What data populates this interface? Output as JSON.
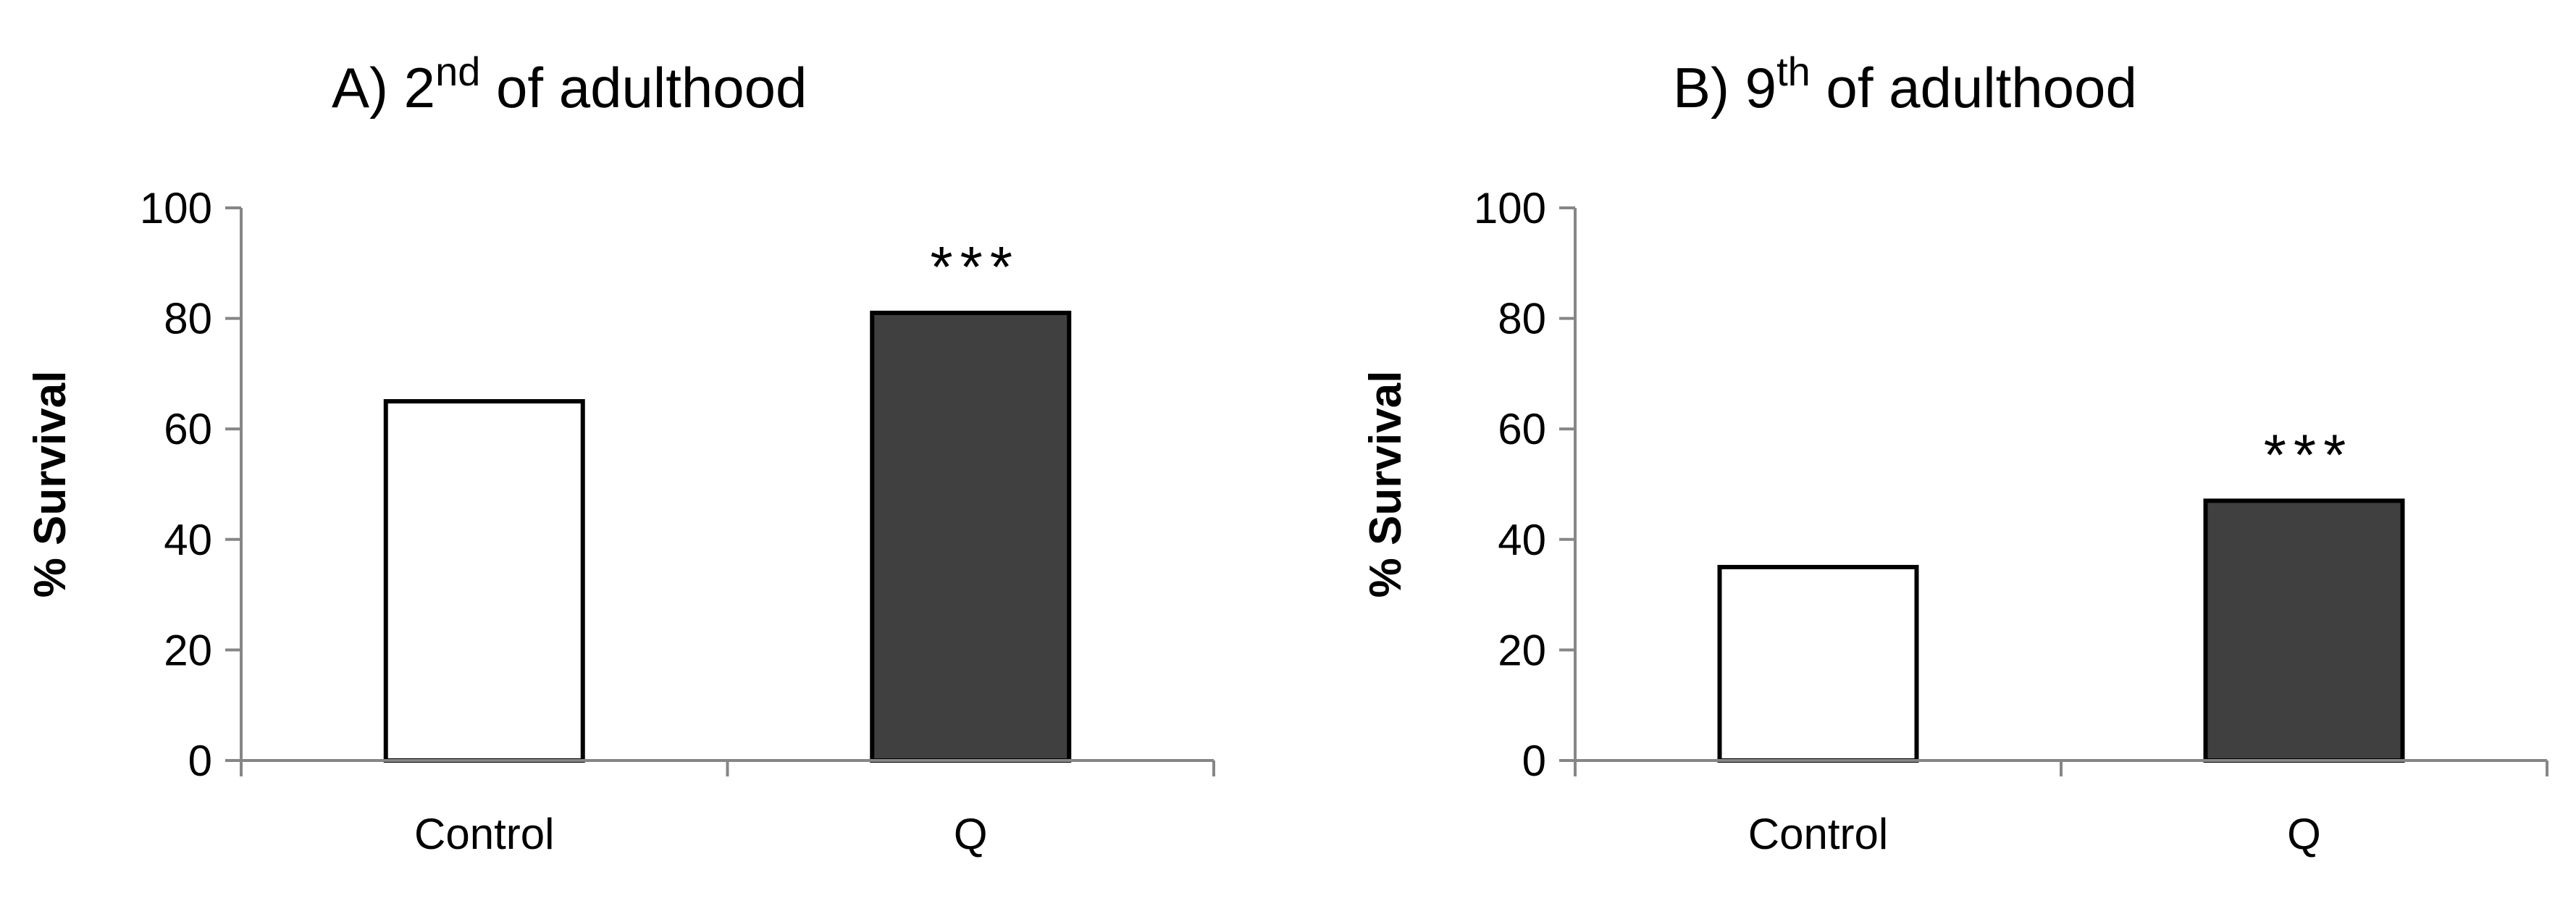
{
  "chart_data": [
    {
      "type": "bar",
      "title": {
        "prefix": "A) 2",
        "superscript": "nd",
        "suffix": " of adulthood"
      },
      "xlabel": "",
      "ylabel": "% Survival",
      "ylim": [
        0,
        100
      ],
      "yticks": [
        "0",
        "20",
        "40",
        "60",
        "80",
        "100"
      ],
      "categories": [
        "Control",
        "Q"
      ],
      "values": [
        65,
        81
      ],
      "annotations": [
        "",
        "***"
      ],
      "colors": [
        "#ffffff",
        "#404040"
      ]
    },
    {
      "type": "bar",
      "title": {
        "prefix": "B) 9",
        "superscript": "th",
        "suffix": " of adulthood"
      },
      "xlabel": "",
      "ylabel": "% Survival",
      "ylim": [
        0,
        100
      ],
      "yticks": [
        "0",
        "20",
        "40",
        "60",
        "80",
        "100"
      ],
      "categories": [
        "Control",
        "Q"
      ],
      "values": [
        35,
        47
      ],
      "annotations": [
        "",
        "***"
      ],
      "colors": [
        "#ffffff",
        "#404040"
      ]
    }
  ]
}
